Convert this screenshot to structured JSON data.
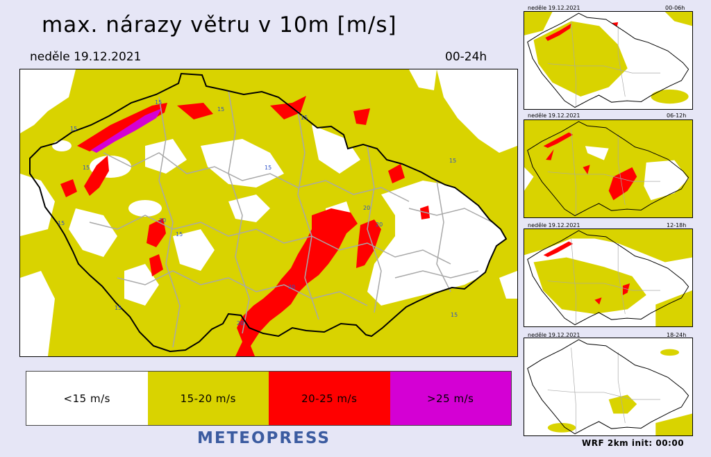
{
  "header": {
    "title": "max. nárazy větru v 10m [m/s]",
    "date": "neděle 19.12.2021",
    "period": "00-24h"
  },
  "legend": [
    {
      "label": "<15 m/s",
      "color": "#ffffff"
    },
    {
      "label": "15-20 m/s",
      "color": "#d9d300"
    },
    {
      "label": "20-25 m/s",
      "color": "#ff0000"
    },
    {
      "label": ">25 m/s",
      "color": "#d400d4"
    }
  ],
  "brand": "METEOPRESS",
  "footer": "WRF  2km  init: 00:00",
  "contour_labels": [
    "15",
    "20"
  ],
  "thumbnails": [
    {
      "date": "neděle 19.12.2021",
      "period": "00-06h"
    },
    {
      "date": "neděle 19.12.2021",
      "period": "06-12h"
    },
    {
      "date": "neděle 19.12.2021",
      "period": "12-18h"
    },
    {
      "date": "neděle 19.12.2021",
      "period": "18-24h"
    }
  ],
  "colors": {
    "background": "#e6e6f6",
    "yellow": "#d9d300",
    "red": "#ff0000",
    "magenta": "#d400d4",
    "border": "#000000",
    "districts": "#a8a8a8",
    "brand": "#3b5ba0"
  }
}
